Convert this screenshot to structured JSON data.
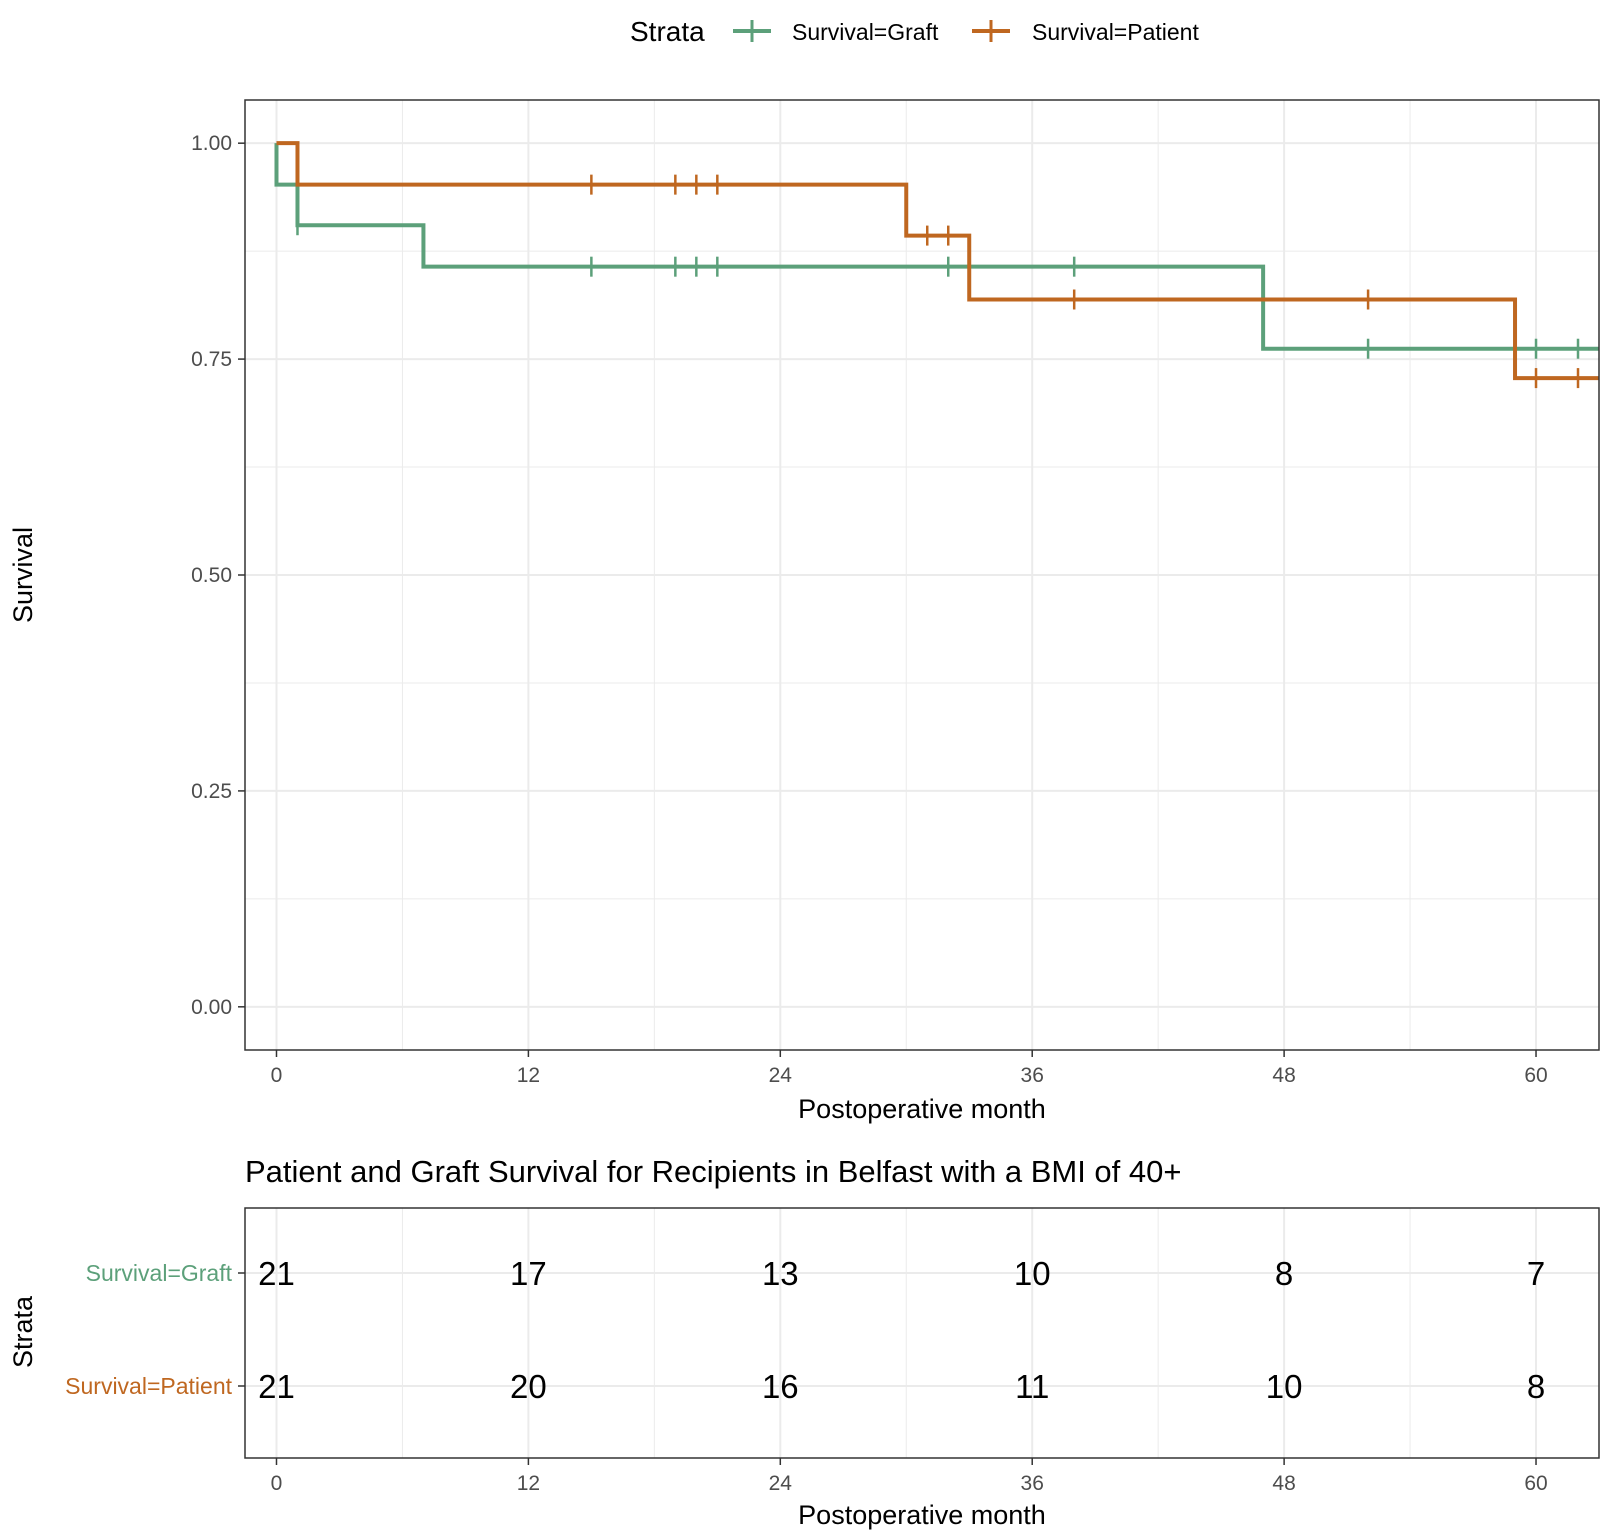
{
  "legend": {
    "title": "Strata",
    "items": [
      {
        "label": "Survival=Graft",
        "color": "#5ca07a"
      },
      {
        "label": "Survival=Patient",
        "color": "#bf6720"
      }
    ]
  },
  "chart_data": [
    {
      "type": "line",
      "subtype": "kaplan-meier-step",
      "xlabel": "Postoperative month",
      "ylabel": "Survival",
      "xlim": [
        -1.5,
        63
      ],
      "ylim": [
        -0.05,
        1.05
      ],
      "x_ticks": [
        0,
        12,
        24,
        36,
        48,
        60
      ],
      "y_ticks": [
        0,
        0.25,
        0.5,
        0.75,
        1.0
      ],
      "y_tick_labels": [
        "0.00",
        "0.25",
        "0.50",
        "0.75",
        "1.00"
      ],
      "grid": true,
      "legend_position": "top",
      "series": [
        {
          "name": "Survival=Graft",
          "color": "#5ca07a",
          "steps": [
            [
              0,
              1.0
            ],
            [
              0,
              0.952
            ],
            [
              1,
              0.905
            ],
            [
              7,
              0.857
            ],
            [
              47,
              0.762
            ],
            [
              63,
              0.762
            ]
          ],
          "censored": [
            [
              1,
              0.905
            ],
            [
              15,
              0.857
            ],
            [
              19,
              0.857
            ],
            [
              20,
              0.857
            ],
            [
              21,
              0.857
            ],
            [
              32,
              0.857
            ],
            [
              38,
              0.857
            ],
            [
              52,
              0.762
            ],
            [
              60,
              0.762
            ],
            [
              62,
              0.762
            ]
          ]
        },
        {
          "name": "Survival=Patient",
          "color": "#bf6720",
          "steps": [
            [
              0,
              1.0
            ],
            [
              1,
              0.952
            ],
            [
              30,
              0.893
            ],
            [
              33,
              0.819
            ],
            [
              59,
              0.728
            ],
            [
              63,
              0.728
            ]
          ],
          "censored": [
            [
              15,
              0.952
            ],
            [
              19,
              0.952
            ],
            [
              20,
              0.952
            ],
            [
              21,
              0.952
            ],
            [
              31,
              0.893
            ],
            [
              32,
              0.893
            ],
            [
              38,
              0.819
            ],
            [
              52,
              0.819
            ],
            [
              60,
              0.728
            ],
            [
              62,
              0.728
            ]
          ]
        }
      ]
    },
    {
      "type": "table",
      "title": "Patient and Graft Survival for Recipients in Belfast with a BMI of 40+",
      "xlabel": "Postoperative month",
      "ylabel": "Strata",
      "x_ticks": [
        0,
        12,
        24,
        36,
        48,
        60
      ],
      "rows": [
        {
          "name": "Survival=Graft",
          "color": "#5ca07a",
          "values": [
            21,
            17,
            13,
            10,
            8,
            7
          ]
        },
        {
          "name": "Survival=Patient",
          "color": "#bf6720",
          "values": [
            21,
            20,
            16,
            11,
            10,
            8
          ]
        }
      ]
    }
  ]
}
